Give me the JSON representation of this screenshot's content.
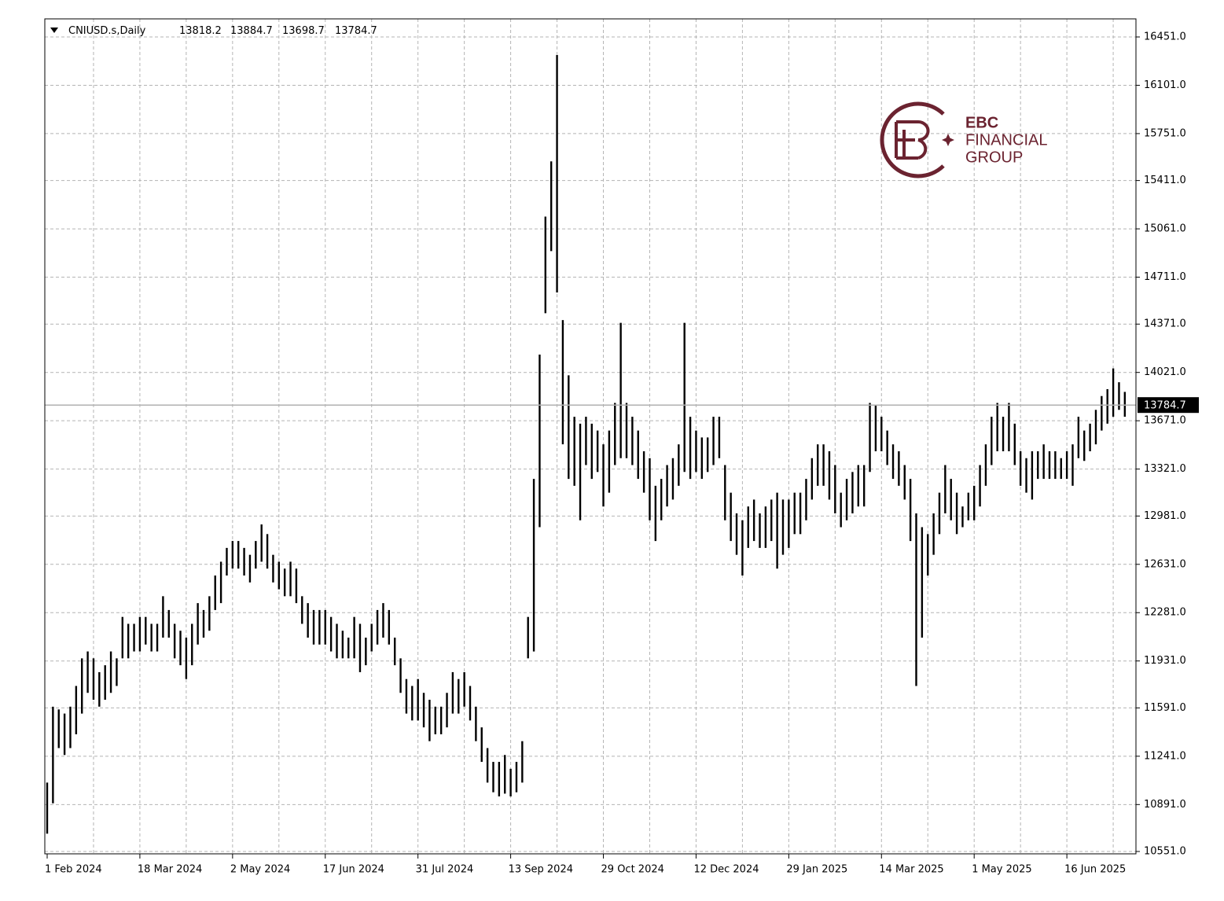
{
  "chart_data": {
    "type": "ohlc",
    "title": "CNIUSD.s,Daily",
    "last_bar": {
      "open": 13818.2,
      "high": 13884.7,
      "low": 13698.7,
      "close": 13784.7
    },
    "watermark": [
      "EBC",
      "FINANCIAL",
      "GROUP"
    ],
    "color": "#000000",
    "grid": true,
    "ylim": [
      10534,
      16582
    ],
    "yticks": [
      {
        "value": 10551,
        "label": "10551.0"
      },
      {
        "value": 10891,
        "label": "10891.0"
      },
      {
        "value": 11241,
        "label": "11241.0"
      },
      {
        "value": 11591,
        "label": "11591.0"
      },
      {
        "value": 11931,
        "label": "11931.0"
      },
      {
        "value": 12281,
        "label": "12281.0"
      },
      {
        "value": 12631,
        "label": "12631.0"
      },
      {
        "value": 12981,
        "label": "12981.0"
      },
      {
        "value": 13321,
        "label": "13321.0"
      },
      {
        "value": 13671,
        "label": "13671.0"
      },
      {
        "value": 14021,
        "label": "14021.0"
      },
      {
        "value": 14371,
        "label": "14371.0"
      },
      {
        "value": 14711,
        "label": "14711.0"
      },
      {
        "value": 15061,
        "label": "15061.0"
      },
      {
        "value": 15411,
        "label": "15411.0"
      },
      {
        "value": 15751,
        "label": "15751.0"
      },
      {
        "value": 16101,
        "label": "16101.0"
      },
      {
        "value": 16451,
        "label": "16451.0"
      }
    ],
    "categories": [
      "1 Feb 2024",
      null,
      null,
      null,
      null,
      null,
      null,
      null,
      null,
      null,
      null,
      null,
      null,
      null,
      null,
      null,
      "18 Mar 2024",
      null,
      null,
      null,
      null,
      null,
      null,
      null,
      null,
      null,
      null,
      null,
      null,
      null,
      null,
      null,
      "2 May 2024",
      null,
      null,
      null,
      null,
      null,
      null,
      null,
      null,
      null,
      null,
      null,
      null,
      null,
      null,
      null,
      "17 Jun 2024",
      null,
      null,
      null,
      null,
      null,
      null,
      null,
      null,
      null,
      null,
      null,
      null,
      null,
      null,
      null,
      "31 Jul 2024",
      null,
      null,
      null,
      null,
      null,
      null,
      null,
      null,
      null,
      null,
      null,
      null,
      null,
      null,
      null,
      "13 Sep 2024",
      null,
      null,
      null,
      null,
      null,
      null,
      null,
      null,
      null,
      null,
      null,
      null,
      null,
      null,
      null,
      "29 Oct 2024",
      null,
      null,
      null,
      null,
      null,
      null,
      null,
      null,
      null,
      null,
      null,
      null,
      null,
      null,
      null,
      "12 Dec 2024",
      null,
      null,
      null,
      null,
      null,
      null,
      null,
      null,
      null,
      null,
      null,
      null,
      null,
      null,
      null,
      "29 Jan 2025",
      null,
      null,
      null,
      null,
      null,
      null,
      null,
      null,
      null,
      null,
      null,
      null,
      null,
      null,
      null,
      "14 Mar 2025",
      null,
      null,
      null,
      null,
      null,
      null,
      null,
      null,
      null,
      null,
      null,
      null,
      null,
      null,
      null,
      "1 May 2025",
      null,
      null,
      null,
      null,
      null,
      null,
      null,
      null,
      null,
      null,
      null,
      null,
      null,
      null,
      null,
      "16 Jun 2025",
      null,
      null,
      null,
      null,
      null,
      null,
      null,
      null,
      null,
      null
    ],
    "high": [
      11050,
      11600,
      11580,
      11550,
      11600,
      11750,
      11950,
      12000,
      11950,
      11850,
      11900,
      12000,
      11950,
      12250,
      12200,
      12200,
      12250,
      12250,
      12200,
      12200,
      12400,
      12300,
      12200,
      12150,
      12100,
      12200,
      12350,
      12300,
      12400,
      12550,
      12650,
      12750,
      12800,
      12800,
      12750,
      12700,
      12800,
      12920,
      12850,
      12700,
      12650,
      12600,
      12650,
      12600,
      12400,
      12350,
      12300,
      12300,
      12300,
      12250,
      12200,
      12150,
      12100,
      12250,
      12200,
      12100,
      12200,
      12300,
      12350,
      12300,
      12100,
      11950,
      11800,
      11750,
      11800,
      11700,
      11650,
      11600,
      11600,
      11700,
      11850,
      11800,
      11850,
      11750,
      11600,
      11450,
      11300,
      11200,
      11200,
      11250,
      11150,
      11200,
      11350,
      12250,
      13250,
      14150,
      15150,
      15550,
      16320,
      14400,
      14000,
      13700,
      13650,
      13700,
      13650,
      13600,
      13500,
      13600,
      13800,
      14380,
      13800,
      13700,
      13600,
      13450,
      13400,
      13200,
      13250,
      13350,
      13400,
      13500,
      14380,
      13700,
      13600,
      13550,
      13550,
      13700,
      13700,
      13350,
      13150,
      13000,
      12950,
      13050,
      13100,
      13000,
      13050,
      13100,
      13150,
      13100,
      13100,
      13150,
      13150,
      13250,
      13400,
      13500,
      13500,
      13450,
      13350,
      13150,
      13250,
      13300,
      13350,
      13350,
      13800,
      13780,
      13700,
      13600,
      13500,
      13450,
      13350,
      13250,
      13000,
      12900,
      12850,
      13000,
      13150,
      13350,
      13250,
      13150,
      13050,
      13150,
      13200,
      13350,
      13500,
      13700,
      13800,
      13700,
      13800,
      13650,
      13450,
      13400,
      13450,
      13450,
      13500,
      13450,
      13450,
      13400,
      13450,
      13500,
      13700,
      13600,
      13650,
      13750,
      13850,
      13900,
      14050,
      13950,
      13880
    ],
    "low": [
      10680,
      10900,
      11300,
      11250,
      11300,
      11400,
      11550,
      11700,
      11650,
      11600,
      11650,
      11700,
      11750,
      11950,
      11950,
      12000,
      12000,
      12050,
      12000,
      12000,
      12100,
      12100,
      11950,
      11900,
      11800,
      11900,
      12050,
      12100,
      12150,
      12300,
      12350,
      12550,
      12600,
      12600,
      12550,
      12500,
      12600,
      12650,
      12600,
      12500,
      12450,
      12400,
      12400,
      12350,
      12200,
      12100,
      12050,
      12050,
      12050,
      12000,
      11950,
      11950,
      11950,
      11950,
      11850,
      11900,
      12000,
      12050,
      12100,
      12050,
      11900,
      11700,
      11550,
      11500,
      11500,
      11450,
      11350,
      11400,
      11400,
      11450,
      11550,
      11550,
      11600,
      11500,
      11350,
      11200,
      11050,
      10980,
      10950,
      10970,
      10950,
      10980,
      11050,
      11950,
      12000,
      12900,
      14450,
      14900,
      14600,
      13500,
      13250,
      13200,
      12950,
      13350,
      13250,
      13300,
      13050,
      13150,
      13350,
      13400,
      13400,
      13350,
      13250,
      13150,
      12950,
      12800,
      12950,
      13050,
      13100,
      13200,
      13300,
      13250,
      13300,
      13250,
      13300,
      13350,
      13400,
      12950,
      12800,
      12700,
      12550,
      12750,
      12800,
      12750,
      12750,
      12800,
      12600,
      12700,
      12750,
      12850,
      12850,
      12950,
      13100,
      13200,
      13200,
      13100,
      13000,
      12900,
      12950,
      13000,
      13050,
      13050,
      13300,
      13450,
      13450,
      13350,
      13250,
      13200,
      13100,
      12800,
      11750,
      12100,
      12550,
      12700,
      12850,
      13000,
      12950,
      12850,
      12900,
      12950,
      12950,
      13050,
      13200,
      13350,
      13450,
      13450,
      13450,
      13350,
      13200,
      13150,
      13100,
      13250,
      13250,
      13250,
      13250,
      13250,
      13250,
      13200,
      13400,
      13380,
      13450,
      13500,
      13600,
      13650,
      13700,
      13750,
      13700
    ]
  }
}
